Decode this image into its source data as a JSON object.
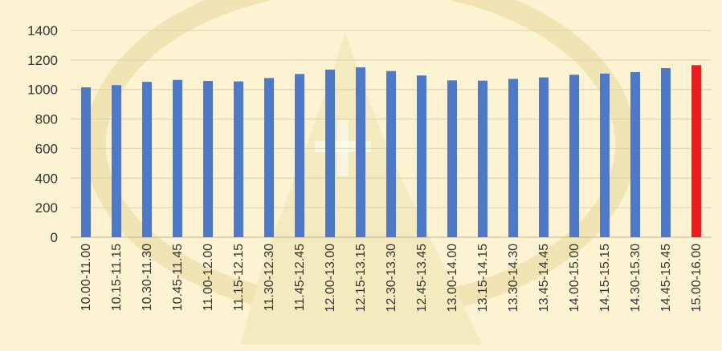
{
  "chart_data": {
    "type": "bar",
    "title": "",
    "xlabel": "",
    "ylabel": "",
    "categories": [
      "10.00-11.00",
      "10.15-11.15",
      "10.30-11.30",
      "10.45-11.45",
      "11.00-12.00",
      "11.15-12.15",
      "11.30-12.30",
      "11.45-12.45",
      "12.00-13.00",
      "12.15-13.15",
      "12.30-13.30",
      "12.45-13.45",
      "13.00-14.00",
      "13.15-14.15",
      "13.30-14.30",
      "13.45-14.45",
      "14.00-15.00",
      "14.15-15.15",
      "14.30-15.30",
      "14.45-15.45",
      "15.00-16.00"
    ],
    "values": [
      1015,
      1030,
      1052,
      1065,
      1058,
      1055,
      1078,
      1105,
      1135,
      1150,
      1125,
      1095,
      1062,
      1060,
      1072,
      1082,
      1100,
      1108,
      1118,
      1145,
      1165
    ],
    "highlight_index": 20,
    "ylim": [
      0,
      1400
    ],
    "yticks": [
      0,
      200,
      400,
      600,
      800,
      1000,
      1200,
      1400
    ],
    "grid": true,
    "legend": "none",
    "colors": {
      "bar": "#4f78c6",
      "highlight": "#ee1c1c",
      "grid": "#d9d0b0",
      "axis": "#bdb59a",
      "text": "#333333"
    }
  }
}
